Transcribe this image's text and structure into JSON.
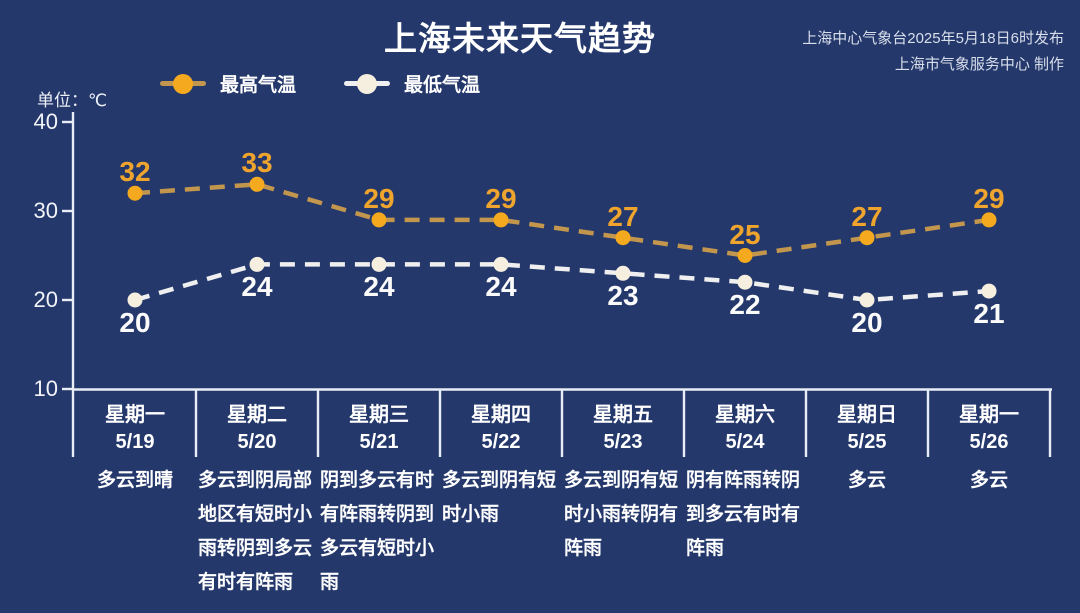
{
  "header": {
    "title": "上海未来天气趋势",
    "publisher_line1": "上海中心气象台2025年5月18日6时发布",
    "publisher_line2": "上海市气象服务中心 制作",
    "unit_label": "单位：℃"
  },
  "legend": {
    "high_label": "最高气温",
    "low_label": "最低气温"
  },
  "colors": {
    "background": "#24386C",
    "high_marker": "#F5A91E",
    "high_line": "#C3964E",
    "high_value_text": "#EFA42D",
    "low_marker": "#F6EFDF",
    "low_line": "#EFEFEF",
    "axis": "#E9EDF5",
    "text": "#FFFFFF"
  },
  "chart_data": {
    "type": "line",
    "title": "上海未来天气趋势",
    "ylabel": "单位：℃",
    "ylim": [
      10,
      40
    ],
    "yticks": [
      40,
      30,
      20,
      10
    ],
    "grid": false,
    "legend_position": "top-left",
    "line_style": "dashed",
    "categories": [
      "星期一 5/19",
      "星期二 5/20",
      "星期三 5/21",
      "星期四 5/22",
      "星期五 5/23",
      "星期六 5/24",
      "星期日 5/25",
      "星期一 5/26"
    ],
    "series": [
      {
        "name": "最高气温",
        "values": [
          32,
          33,
          29,
          29,
          27,
          25,
          27,
          29
        ]
      },
      {
        "name": "最低气温",
        "values": [
          20,
          24,
          24,
          24,
          23,
          22,
          20,
          21
        ]
      }
    ],
    "days": [
      {
        "weekday": "星期一",
        "date": "5/19",
        "weather": "多云到晴"
      },
      {
        "weekday": "星期二",
        "date": "5/20",
        "weather": "多云到阴局部地区有短时小雨转阴到多云有时有阵雨"
      },
      {
        "weekday": "星期三",
        "date": "5/21",
        "weather": "阴到多云有时有阵雨转阴到多云有短时小雨"
      },
      {
        "weekday": "星期四",
        "date": "5/22",
        "weather": "多云到阴有短时小雨"
      },
      {
        "weekday": "星期五",
        "date": "5/23",
        "weather": "多云到阴有短时小雨转阴有阵雨"
      },
      {
        "weekday": "星期六",
        "date": "5/24",
        "weather": "阴有阵雨转阴到多云有时有阵雨"
      },
      {
        "weekday": "星期日",
        "date": "5/25",
        "weather": "多云"
      },
      {
        "weekday": "星期一",
        "date": "5/26",
        "weather": "多云"
      }
    ]
  }
}
